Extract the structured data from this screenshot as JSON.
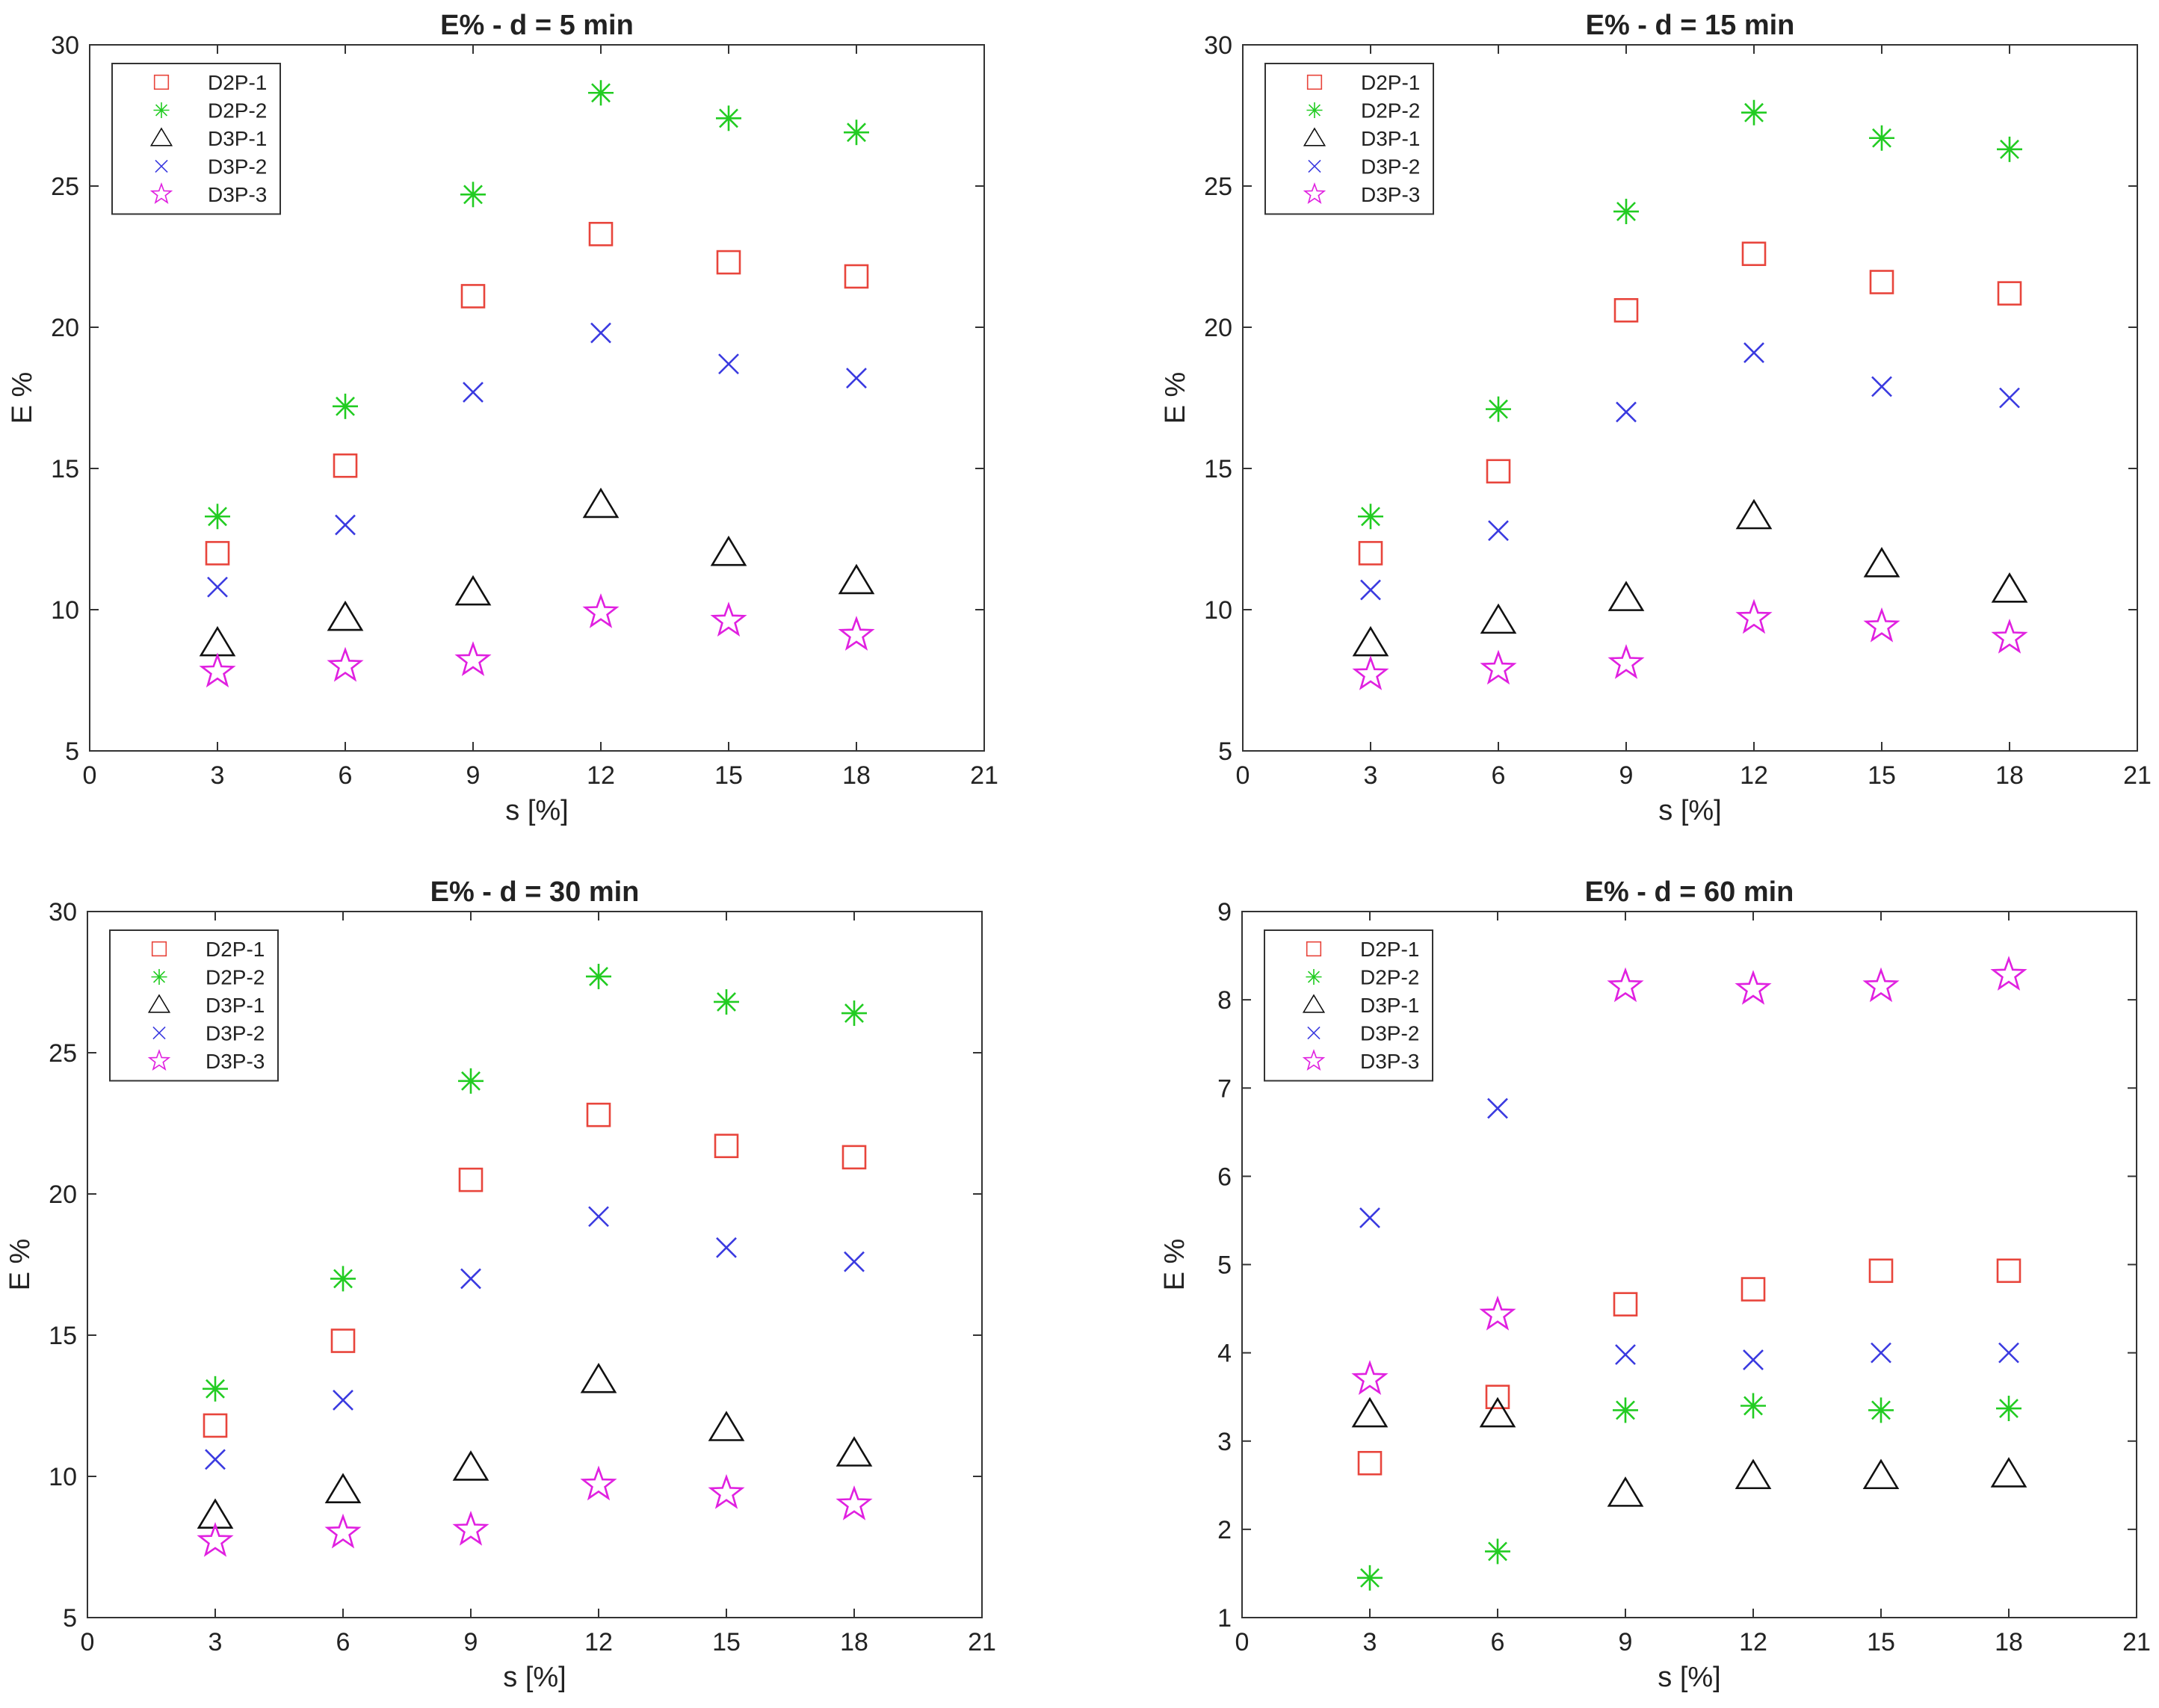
{
  "chart_data": [
    {
      "type": "scatter",
      "title": "E% - d = 5 min",
      "xlabel": "s [%]",
      "ylabel": "E %",
      "xlim": [
        0,
        21
      ],
      "ylim": [
        5,
        30
      ],
      "xticks": [
        0,
        3,
        6,
        9,
        12,
        15,
        18,
        21
      ],
      "yticks": [
        5,
        10,
        15,
        20,
        25,
        30
      ],
      "legend_position": "top-left",
      "x": [
        3,
        6,
        9,
        12,
        15,
        18
      ],
      "series": [
        {
          "name": "D2P-1",
          "marker": "square",
          "color": "#e8453c",
          "values": [
            12.0,
            15.1,
            21.1,
            23.3,
            22.3,
            21.8
          ]
        },
        {
          "name": "D2P-2",
          "marker": "asterisk",
          "color": "#22cc22",
          "values": [
            13.3,
            17.2,
            24.7,
            28.3,
            27.4,
            26.9
          ]
        },
        {
          "name": "D3P-1",
          "marker": "triangle",
          "color": "#111111",
          "values": [
            8.8,
            9.7,
            10.6,
            13.7,
            12.0,
            11.0
          ]
        },
        {
          "name": "D3P-2",
          "marker": "x",
          "color": "#3a3ae0",
          "values": [
            10.8,
            13.0,
            17.7,
            19.8,
            18.7,
            18.2
          ]
        },
        {
          "name": "D3P-3",
          "marker": "star",
          "color": "#e020e0",
          "values": [
            7.8,
            8.0,
            8.2,
            9.9,
            9.6,
            9.1
          ]
        }
      ]
    },
    {
      "type": "scatter",
      "title": "E% - d = 15 min",
      "xlabel": "s [%]",
      "ylabel": "E %",
      "xlim": [
        0,
        21
      ],
      "ylim": [
        5,
        30
      ],
      "xticks": [
        0,
        3,
        6,
        9,
        12,
        15,
        18,
        21
      ],
      "yticks": [
        5,
        10,
        15,
        20,
        25,
        30
      ],
      "legend_position": "top-left",
      "x": [
        3,
        6,
        9,
        12,
        15,
        18
      ],
      "series": [
        {
          "name": "D2P-1",
          "marker": "square",
          "color": "#e8453c",
          "values": [
            12.0,
            14.9,
            20.6,
            22.6,
            21.6,
            21.2
          ]
        },
        {
          "name": "D2P-2",
          "marker": "asterisk",
          "color": "#22cc22",
          "values": [
            13.3,
            17.1,
            24.1,
            27.6,
            26.7,
            26.3
          ]
        },
        {
          "name": "D3P-1",
          "marker": "triangle",
          "color": "#111111",
          "values": [
            8.8,
            9.6,
            10.4,
            13.3,
            11.6,
            10.7
          ]
        },
        {
          "name": "D3P-2",
          "marker": "x",
          "color": "#3a3ae0",
          "values": [
            10.7,
            12.8,
            17.0,
            19.1,
            17.9,
            17.5
          ]
        },
        {
          "name": "D3P-3",
          "marker": "star",
          "color": "#e020e0",
          "values": [
            7.7,
            7.9,
            8.1,
            9.7,
            9.4,
            9.0
          ]
        }
      ]
    },
    {
      "type": "scatter",
      "title": "E% - d = 30 min",
      "xlabel": "s [%]",
      "ylabel": "E %",
      "xlim": [
        0,
        21
      ],
      "ylim": [
        5,
        30
      ],
      "xticks": [
        0,
        3,
        6,
        9,
        12,
        15,
        18,
        21
      ],
      "yticks": [
        5,
        10,
        15,
        20,
        25,
        30
      ],
      "legend_position": "top-left",
      "x": [
        3,
        6,
        9,
        12,
        15,
        18
      ],
      "series": [
        {
          "name": "D2P-1",
          "marker": "square",
          "color": "#e8453c",
          "values": [
            11.8,
            14.8,
            20.5,
            22.8,
            21.7,
            21.3
          ]
        },
        {
          "name": "D2P-2",
          "marker": "asterisk",
          "color": "#22cc22",
          "values": [
            13.1,
            17.0,
            24.0,
            27.7,
            26.8,
            26.4
          ]
        },
        {
          "name": "D3P-1",
          "marker": "triangle",
          "color": "#111111",
          "values": [
            8.6,
            9.5,
            10.3,
            13.4,
            11.7,
            10.8
          ]
        },
        {
          "name": "D3P-2",
          "marker": "x",
          "color": "#3a3ae0",
          "values": [
            10.6,
            12.7,
            17.0,
            19.2,
            18.1,
            17.6
          ]
        },
        {
          "name": "D3P-3",
          "marker": "star",
          "color": "#e020e0",
          "values": [
            7.7,
            8.0,
            8.1,
            9.7,
            9.4,
            9.0
          ]
        }
      ]
    },
    {
      "type": "scatter",
      "title": "E% - d = 60 min",
      "xlabel": "s [%]",
      "ylabel": "E %",
      "xlim": [
        0,
        21
      ],
      "ylim": [
        1,
        9
      ],
      "xticks": [
        0,
        3,
        6,
        9,
        12,
        15,
        18,
        21
      ],
      "yticks": [
        1,
        2,
        3,
        4,
        5,
        6,
        7,
        8,
        9
      ],
      "legend_position": "top-left",
      "x": [
        3,
        6,
        9,
        12,
        15,
        18
      ],
      "series": [
        {
          "name": "D2P-1",
          "marker": "square",
          "color": "#e8453c",
          "values": [
            2.75,
            3.5,
            4.55,
            4.72,
            4.93,
            4.93
          ]
        },
        {
          "name": "D2P-2",
          "marker": "asterisk",
          "color": "#22cc22",
          "values": [
            1.45,
            1.75,
            3.35,
            3.4,
            3.35,
            3.37
          ]
        },
        {
          "name": "D3P-1",
          "marker": "triangle",
          "color": "#111111",
          "values": [
            3.3,
            3.3,
            2.4,
            2.6,
            2.6,
            2.62
          ]
        },
        {
          "name": "D3P-2",
          "marker": "x",
          "color": "#3a3ae0",
          "values": [
            5.53,
            6.77,
            3.98,
            3.92,
            4.0,
            4.0
          ]
        },
        {
          "name": "D3P-3",
          "marker": "star",
          "color": "#e020e0",
          "values": [
            3.7,
            4.43,
            8.15,
            8.12,
            8.15,
            8.28
          ]
        }
      ]
    }
  ]
}
